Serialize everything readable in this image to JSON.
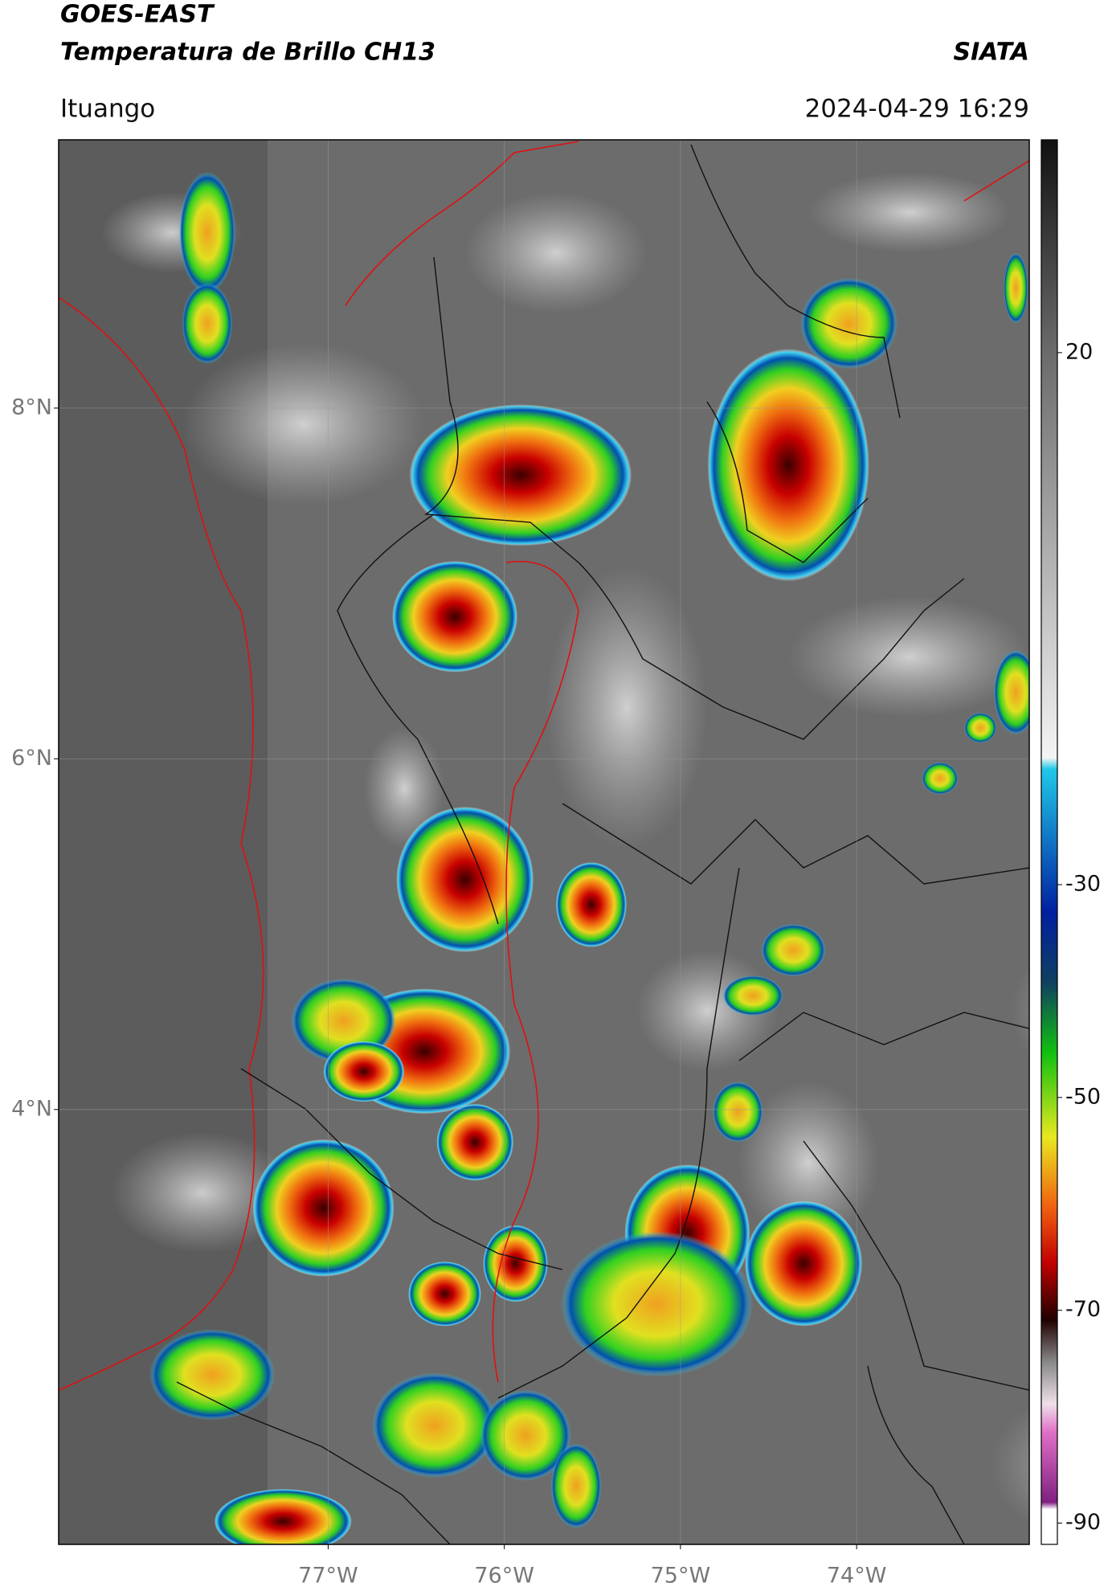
{
  "header": {
    "title": "GOES-EAST",
    "subtitle": "Temperatura de Brillo CH13",
    "source": "SIATA",
    "location": "Ituango",
    "datetime": "2024-04-29 16:29"
  },
  "map": {
    "ylim": [
      1.52,
      9.53
    ],
    "yticks": [
      {
        "value": 8,
        "label": "8°N"
      },
      {
        "value": 6,
        "label": "6°N"
      },
      {
        "value": 4,
        "label": "4°N"
      }
    ],
    "xlim": [
      -78.53,
      -73.02
    ],
    "xticks": [
      {
        "value": -77,
        "label": "77°W"
      },
      {
        "value": -76,
        "label": "76°W"
      },
      {
        "value": -75,
        "label": "75°W"
      },
      {
        "value": -74,
        "label": "74°W"
      }
    ],
    "grid": true
  },
  "colorbar": {
    "lim": [
      -92,
      40
    ],
    "ticks": [
      20,
      -30,
      -50,
      -70,
      -90
    ]
  }
}
